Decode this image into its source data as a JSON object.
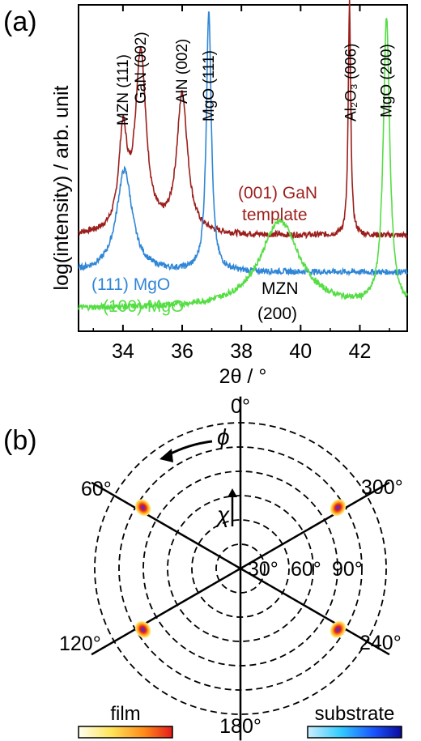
{
  "panels": {
    "a": "(a)",
    "b": "(b)"
  },
  "chart_data": [
    {
      "type": "line",
      "ylabel": "log(intensity) / arb. unit",
      "xlabel": "2θ / °",
      "xlim": [
        32.5,
        43.6
      ],
      "xticks": [
        34,
        36,
        38,
        40,
        42
      ],
      "yscale": "log (arb. units, offset traces)",
      "peak_labels": [
        {
          "text": "MZN (111)",
          "x": 34.0
        },
        {
          "text": "GaN (002)",
          "x": 34.6
        },
        {
          "text": "AlN (002)",
          "x": 36.0
        },
        {
          "text": "MgO (111)",
          "x": 36.9
        },
        {
          "text": "Al₂O₃ (006)",
          "x": 41.7
        },
        {
          "text": "MgO (200)",
          "x": 42.9
        }
      ],
      "series": [
        {
          "name": "(001) GaN template",
          "color": "#9b1f1c",
          "baseline": 2.0,
          "peaks": [
            [
              34.0,
              4.6,
              0.17
            ],
            [
              34.6,
              6.9,
              0.22
            ],
            [
              36.0,
              5.8,
              0.22
            ],
            [
              41.65,
              8.4,
              0.05
            ]
          ]
        },
        {
          "name": "(111) MgO",
          "color": "#2f86d6",
          "baseline": 1.0,
          "peaks": [
            [
              34.05,
              3.8,
              0.32
            ],
            [
              36.9,
              8.2,
              0.1
            ]
          ]
        },
        {
          "name": "(100) MgO",
          "color": "#55dd44",
          "baseline": 0.0,
          "peaks": [
            [
              39.3,
              2.4,
              0.8
            ],
            [
              42.9,
              7.9,
              0.13
            ]
          ]
        }
      ],
      "annotations": [
        {
          "text": "(001) GaN",
          "color": "#9b1f1c"
        },
        {
          "text": "template",
          "color": "#9b1f1c"
        },
        {
          "text": "(111) MgO",
          "color": "#2f86d6"
        },
        {
          "text": "(100) MgO",
          "color": "#55dd44"
        },
        {
          "text": "MZN",
          "color": "#000000"
        },
        {
          "text": "(200)",
          "color": "#000000"
        }
      ]
    },
    {
      "type": "polar pole figure",
      "phi_label": "ϕ",
      "chi_label": "χ",
      "phi_labels": [
        "0°",
        "60°",
        "120°",
        "180°",
        "240°",
        "300°"
      ],
      "chi_labels": [
        "30°",
        "60°",
        "90°"
      ],
      "spots": [
        {
          "phi": 58,
          "chi": 71
        },
        {
          "phi": 122,
          "chi": 71
        },
        {
          "phi": 238,
          "chi": 71
        },
        {
          "phi": 302,
          "chi": 71
        }
      ],
      "colorbars": [
        {
          "label": "film",
          "colors": [
            "#fffff0",
            "#ffe45a",
            "#ff8a1a",
            "#e41a1a"
          ]
        },
        {
          "label": "substrate",
          "colors": [
            "#cceeff",
            "#33ccff",
            "#1a56ff",
            "#0a0a9a"
          ]
        }
      ]
    }
  ]
}
